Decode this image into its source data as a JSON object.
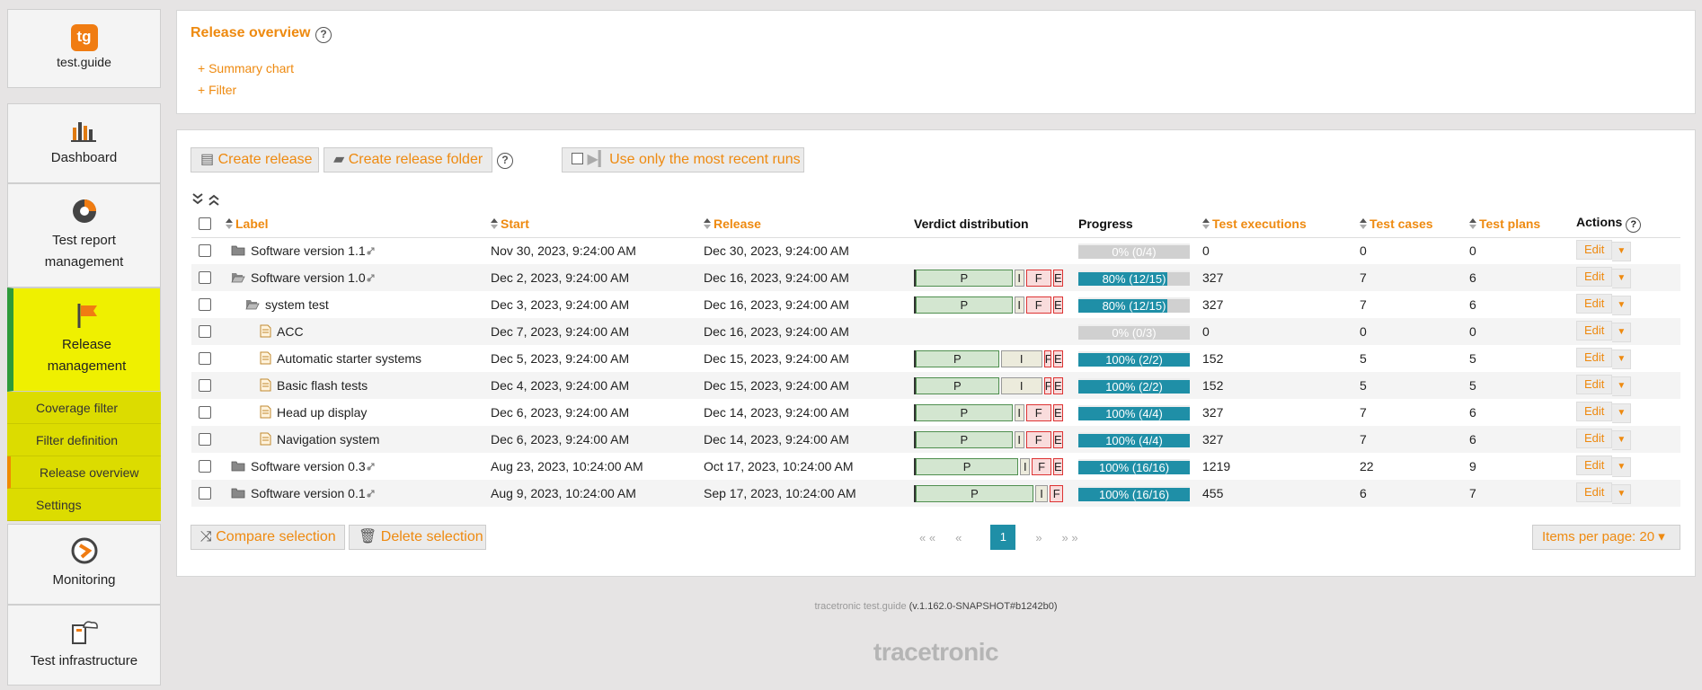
{
  "sidebar": {
    "logo": "tg",
    "brand": "test.guide",
    "items": [
      {
        "label": "Dashboard"
      },
      {
        "label": "Test report management"
      },
      {
        "label": "Release management",
        "subitems": [
          "Coverage filter",
          "Filter definition",
          "Release overview",
          "Settings"
        ]
      },
      {
        "label": "Monitoring"
      },
      {
        "label": "Test infrastructure"
      }
    ]
  },
  "header": {
    "title": "Release overview",
    "links": [
      "+ Summary chart",
      "+ Filter"
    ]
  },
  "toolbar": {
    "buttons": [
      "Create release",
      "Create release folder"
    ],
    "toggle": "Use only the most recent runs"
  },
  "table": {
    "columns": [
      {
        "label": "Label",
        "sortable": true
      },
      {
        "label": "Start",
        "sortable": true
      },
      {
        "label": "Release",
        "sortable": true
      },
      {
        "label": "Verdict distribution",
        "sortable": false
      },
      {
        "label": "Progress",
        "sortable": false
      },
      {
        "label": "Test executions",
        "sortable": true
      },
      {
        "label": "Test cases",
        "sortable": true
      },
      {
        "label": "Test plans",
        "sortable": true
      },
      {
        "label": "Actions",
        "sortable": false
      }
    ],
    "action_labels": [
      "Edit",
      "▼"
    ],
    "rows": [
      {
        "label": "Software version 1.1",
        "start": "Nov 30, 2023, 9:24:00 AM",
        "release": "Dec 30, 2023, 9:24:00 AM",
        "verdict": [],
        "progress": {
          "value": 0,
          "label": "0% (0/4)"
        },
        "executions": 0,
        "test_cases": 0,
        "test_plans": 0
      },
      {
        "label": "Software version 1.0",
        "start": "Dec 2, 2023, 9:24:00 AM",
        "release": "Dec 16, 2023, 9:24:00 AM",
        "verdict": [
          {
            "label": "P",
            "value": 66
          },
          {
            "label": "I",
            "value": 8
          },
          {
            "label": "F",
            "value": 18
          },
          {
            "label": "E",
            "value": 8
          }
        ],
        "progress": {
          "value": 80,
          "label": "80% (12/15)"
        },
        "executions": 327,
        "test_cases": 7,
        "test_plans": 6,
        "children": [
          {
            "label": "system test",
            "start": "Dec 3, 2023, 9:24:00 AM",
            "release": "Dec 16, 2023, 9:24:00 AM",
            "verdict": [
              {
                "label": "P",
                "value": 66
              },
              {
                "label": "I",
                "value": 8
              },
              {
                "label": "F",
                "value": 18
              },
              {
                "label": "E",
                "value": 8
              }
            ],
            "progress": {
              "value": 80,
              "label": "80% (12/15)"
            },
            "executions": 327,
            "test_cases": 7,
            "test_plans": 6,
            "children": [
              {
                "label": "ACC",
                "start": "Dec 7, 2023, 9:24:00 AM",
                "release": "Dec 16, 2023, 9:24:00 AM",
                "verdict": [],
                "progress": {
                  "value": 0,
                  "label": "0% (0/3)"
                },
                "executions": 0,
                "test_cases": 0,
                "test_plans": 0
              },
              {
                "label": "Automatic starter systems",
                "start": "Dec 5, 2023, 9:24:00 AM",
                "release": "Dec 15, 2023, 9:24:00 AM",
                "verdict": [
                  {
                    "label": "P",
                    "value": 57
                  },
                  {
                    "label": "I",
                    "value": 29
                  },
                  {
                    "label": "F",
                    "value": 6
                  },
                  {
                    "label": "E",
                    "value": 8
                  }
                ],
                "progress": {
                  "value": 100,
                  "label": "100% (2/2)"
                },
                "executions": 152,
                "test_cases": 5,
                "test_plans": 5
              },
              {
                "label": "Basic flash tests",
                "start": "Dec 4, 2023, 9:24:00 AM",
                "release": "Dec 15, 2023, 9:24:00 AM",
                "verdict": [
                  {
                    "label": "P",
                    "value": 57
                  },
                  {
                    "label": "I",
                    "value": 29
                  },
                  {
                    "label": "F",
                    "value": 6
                  },
                  {
                    "label": "E",
                    "value": 8
                  }
                ],
                "progress": {
                  "value": 100,
                  "label": "100% (2/2)"
                },
                "executions": 152,
                "test_cases": 5,
                "test_plans": 5
              },
              {
                "label": "Head up display",
                "start": "Dec 6, 2023, 9:24:00 AM",
                "release": "Dec 14, 2023, 9:24:00 AM",
                "verdict": [
                  {
                    "label": "P",
                    "value": 66
                  },
                  {
                    "label": "I",
                    "value": 8
                  },
                  {
                    "label": "F",
                    "value": 18
                  },
                  {
                    "label": "E",
                    "value": 8
                  }
                ],
                "progress": {
                  "value": 100,
                  "label": "100% (4/4)"
                },
                "executions": 327,
                "test_cases": 7,
                "test_plans": 6
              },
              {
                "label": "Navigation system",
                "start": "Dec 6, 2023, 9:24:00 AM",
                "release": "Dec 14, 2023, 9:24:00 AM",
                "verdict": [
                  {
                    "label": "P",
                    "value": 66
                  },
                  {
                    "label": "I",
                    "value": 8
                  },
                  {
                    "label": "F",
                    "value": 18
                  },
                  {
                    "label": "E",
                    "value": 8
                  }
                ],
                "progress": {
                  "value": 100,
                  "label": "100% (4/4)"
                },
                "executions": 327,
                "test_cases": 7,
                "test_plans": 6
              }
            ]
          }
        ]
      },
      {
        "label": "Software version 0.3",
        "start": "Aug 23, 2023, 10:24:00 AM",
        "release": "Oct 17, 2023, 10:24:00 AM",
        "verdict": [
          {
            "label": "P",
            "value": 70
          },
          {
            "label": "I",
            "value": 8
          },
          {
            "label": "F",
            "value": 14
          },
          {
            "label": "E",
            "value": 8
          }
        ],
        "progress": {
          "value": 100,
          "label": "100% (16/16)"
        },
        "executions": 1219,
        "test_cases": 22,
        "test_plans": 9
      },
      {
        "label": "Software version 0.1",
        "start": "Aug 9, 2023, 10:24:00 AM",
        "release": "Sep 17, 2023, 10:24:00 AM",
        "verdict": [
          {
            "label": "P",
            "value": 80
          },
          {
            "label": "I",
            "value": 10
          },
          {
            "label": "F",
            "value": 10
          }
        ],
        "progress": {
          "value": 100,
          "label": "100% (16/16)"
        },
        "executions": 455,
        "test_cases": 6,
        "test_plans": 7
      }
    ]
  },
  "footer": {
    "buttons": [
      "Compare selection",
      "Delete selection"
    ],
    "pagination": [
      "« «",
      "«",
      "1",
      "»",
      "» »"
    ],
    "items_per_page": "Items per page: 20 ▾"
  },
  "version": {
    "product": "tracetronic test.guide",
    "build": "(v.1.162.0-SNAPSHOT#b1242b0)"
  },
  "brand_logo": "tracetronic"
}
